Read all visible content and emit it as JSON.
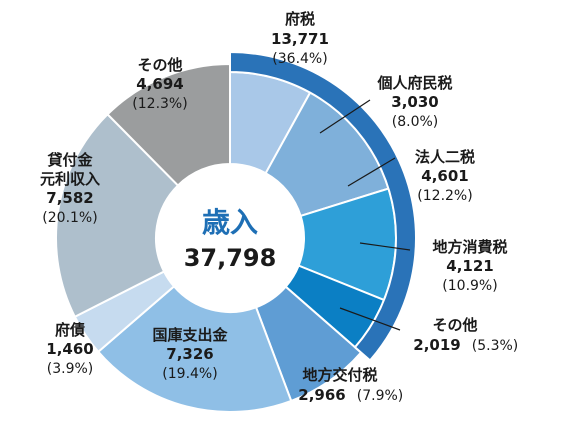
{
  "chart_data": {
    "type": "pie",
    "variant": "donut",
    "center_label": "歳入",
    "center_value": "37,798",
    "slices": [
      {
        "group": "inner",
        "label": "個人府民税",
        "value": 3030,
        "value_text": "3,030",
        "percent_text": "(8.0%)",
        "color": "#a9c8e8"
      },
      {
        "group": "inner",
        "label": "法人二税",
        "value": 4601,
        "value_text": "4,601",
        "percent_text": "(12.2%)",
        "color": "#7fb0da"
      },
      {
        "group": "inner",
        "label": "地方消費税",
        "value": 4121,
        "value_text": "4,121",
        "percent_text": "(10.9%)",
        "color": "#2e9fd8"
      },
      {
        "group": "inner",
        "label": "その他",
        "value": 2019,
        "value_text": "2,019",
        "percent_text": "(5.3%)",
        "color": "#0b7fc4"
      },
      {
        "group": "outer",
        "label": "地方交付税",
        "value": 2966,
        "value_text": "2,966",
        "percent_text": "(7.9%)",
        "color": "#5f9dd4"
      },
      {
        "group": "outer",
        "label": "国庫支出金",
        "value": 7326,
        "value_text": "7,326",
        "percent_text": "(19.4%)",
        "color": "#8fbfe6"
      },
      {
        "group": "outer",
        "label": "府債",
        "value": 1460,
        "value_text": "1,460",
        "percent_text": "(3.9%)",
        "color": "#c6dbef"
      },
      {
        "group": "outer",
        "label": "貸付金元利収入",
        "value": 7582,
        "value_text": "7,582",
        "percent_text": "(20.1%)",
        "color": "#aebfcc"
      },
      {
        "group": "outer",
        "label": "その他",
        "value": 4694,
        "value_text": "4,694",
        "percent_text": "(12.3%)",
        "color": "#9b9d9e"
      }
    ],
    "tax_ring": {
      "label": "府税",
      "value": 13771,
      "value_text": "13,771",
      "percent_text": "(36.4%)",
      "color": "#2a73b8"
    }
  }
}
